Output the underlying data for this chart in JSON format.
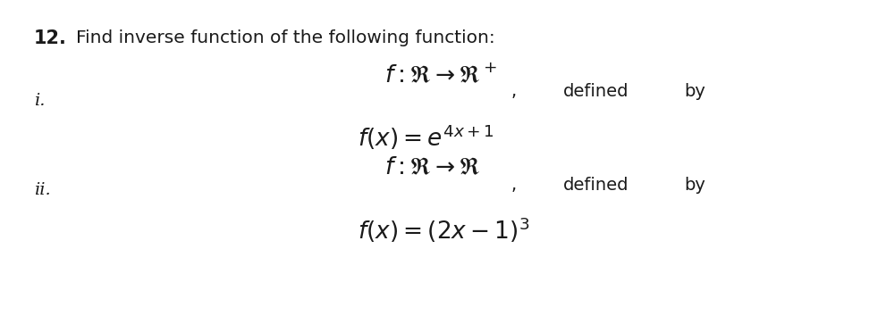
{
  "bg_color": "#ffffff",
  "text_color": "#1a1a1a",
  "title_number": "12.",
  "title_text": "Find inverse function of the following function:",
  "label_i": "i.",
  "label_ii": "ii.",
  "comma": ",",
  "defined": "defined",
  "by": "by",
  "title_fontsize": 14.5,
  "label_fontsize": 14,
  "math_fontsize_large": 19,
  "math_fontsize_medium": 16,
  "defined_fontsize": 14,
  "num_bold_fontsize": 15,
  "fig_width": 9.72,
  "fig_height": 3.63,
  "dpi": 100
}
